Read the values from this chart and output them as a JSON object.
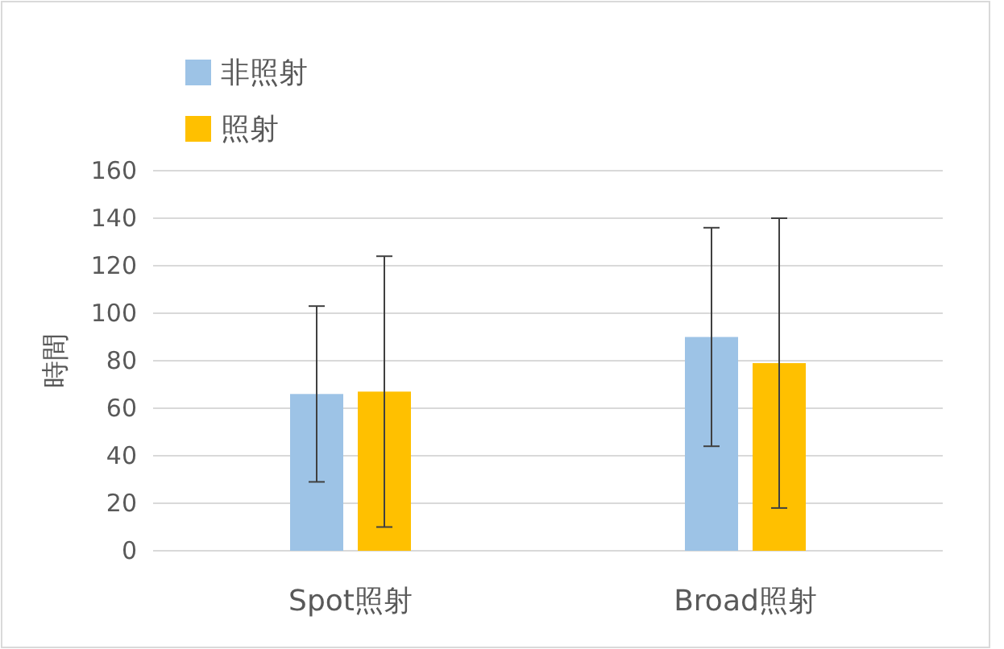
{
  "chart_data": {
    "type": "bar",
    "ylabel": "時間",
    "categories": [
      "Spot照射",
      "Broad照射"
    ],
    "series": [
      {
        "name": "非照射",
        "color": "#9dc3e6",
        "values": [
          66,
          90
        ],
        "errors": [
          37,
          46
        ]
      },
      {
        "name": "照射",
        "color": "#ffc000",
        "values": [
          67,
          79
        ],
        "errors": [
          57,
          61
        ]
      }
    ],
    "ylim": [
      0,
      160
    ],
    "yticks": [
      0,
      20,
      40,
      60,
      80,
      100,
      120,
      140,
      160
    ],
    "grid": "y",
    "legend": "top left"
  }
}
